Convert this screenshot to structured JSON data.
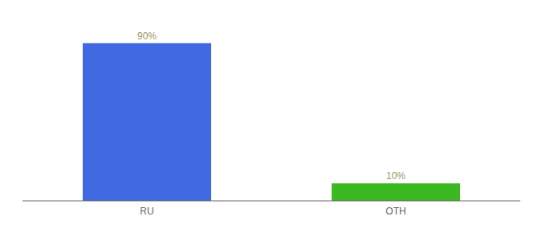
{
  "chart_data": {
    "type": "bar",
    "categories": [
      "RU",
      "OTH"
    ],
    "values": [
      90,
      10
    ],
    "value_labels": [
      "90%",
      "10%"
    ],
    "colors": [
      "#4169e1",
      "#3cb820"
    ],
    "ylim": [
      0,
      100
    ],
    "data_labels": true,
    "tick_labels": "x",
    "grid": false
  }
}
